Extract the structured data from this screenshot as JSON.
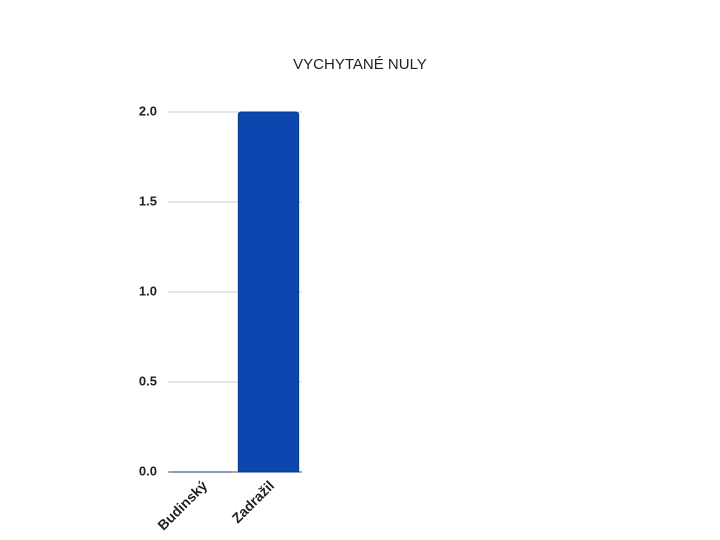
{
  "chart_data": {
    "type": "bar",
    "title": "VYCHYTANÉ NULY",
    "categories": [
      "Budinský",
      "Zadražil"
    ],
    "values": [
      0,
      2
    ],
    "color": "#0b47ae",
    "ylim": [
      0,
      2
    ],
    "yticks": [
      {
        "value": 0,
        "label": "0.0"
      },
      0.5,
      {
        "value": 1,
        "label": "1.0"
      },
      1.5,
      {
        "value": 2,
        "label": "2.0"
      }
    ],
    "grid": true
  }
}
